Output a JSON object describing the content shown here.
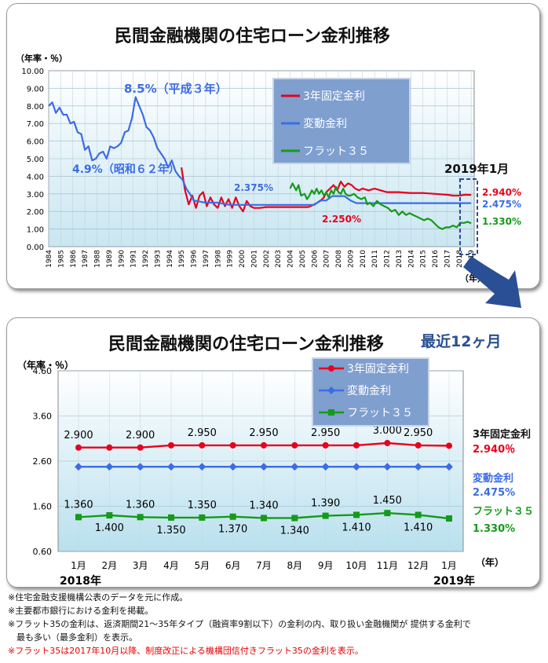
{
  "top": {
    "title": "民間金融機関の住宅ローン金利推移",
    "unit": "（年率・％）",
    "year_unit": "（年）",
    "callout": "2019年1月"
  },
  "bottom": {
    "title": "民間金融機関の住宅ローン金利推移",
    "subtitle": "最近12ヶ月",
    "unit": "（年率・％）",
    "year_unit": "（年）",
    "year_start": "2018年",
    "year_end": "2019年"
  },
  "colors": {
    "fixed": "#e8001c",
    "variable": "#3c6ce6",
    "flat": "#159a19",
    "accent": "#2a4f94"
  },
  "chart_data": [
    {
      "type": "line",
      "yticks": [
        "10.00",
        "9.00",
        "8.00",
        "7.00",
        "6.00",
        "5.00",
        "4.00",
        "3.00",
        "2.00",
        "1.00",
        "0.00"
      ],
      "ylim": [
        0,
        10
      ],
      "xlim": [
        1984,
        2019.25
      ],
      "x_tick_labels": [
        "1984",
        "1985",
        "1986",
        "1987",
        "1988",
        "1989",
        "1990",
        "1991",
        "1992",
        "1993",
        "1994",
        "1995",
        "1996",
        "1997",
        "1998",
        "1999",
        "2000",
        "2001",
        "2002",
        "2003",
        "2004",
        "2005",
        "2006",
        "2007",
        "2008",
        "2009",
        "2010",
        "2011",
        "2012",
        "2013",
        "2014",
        "2015",
        "2016",
        "2017",
        "2018",
        "2019"
      ],
      "legend": [
        "3年固定金利",
        "変動金利",
        "フラット３５"
      ],
      "legend_position": "top-right",
      "grid": true,
      "series": [
        {
          "name": "3年固定金利",
          "color": "#e8001c",
          "x": [
            1995.0,
            1995.3,
            1995.6,
            1995.9,
            1996.2,
            1996.5,
            1996.8,
            1997.1,
            1997.4,
            1997.7,
            1998.0,
            1998.3,
            1998.6,
            1998.9,
            1999.2,
            1999.5,
            1999.8,
            2000.1,
            2000.4,
            2000.7,
            2001.0,
            2001.5,
            2002.0,
            2003.0,
            2004.0,
            2005.0,
            2005.5,
            2006.0,
            2006.5,
            2006.8,
            2007.0,
            2007.3,
            2007.6,
            2007.9,
            2008.2,
            2008.5,
            2008.8,
            2009.1,
            2009.4,
            2009.7,
            2010.0,
            2010.5,
            2011.0,
            2011.5,
            2012.0,
            2013.0,
            2014.0,
            2015.0,
            2016.0,
            2017.0,
            2017.5,
            2018.0,
            2018.5,
            2019.0
          ],
          "values": [
            4.5,
            3.2,
            2.4,
            2.9,
            2.2,
            2.9,
            3.1,
            2.3,
            2.8,
            2.4,
            2.2,
            2.8,
            2.3,
            2.7,
            2.2,
            2.8,
            2.3,
            2.0,
            2.6,
            2.3,
            2.2,
            2.2,
            2.25,
            2.25,
            2.25,
            2.25,
            2.25,
            2.4,
            2.6,
            2.8,
            3.1,
            3.3,
            3.5,
            3.2,
            3.7,
            3.4,
            3.6,
            3.5,
            3.3,
            3.2,
            3.3,
            3.2,
            3.3,
            3.2,
            3.1,
            3.1,
            3.05,
            3.05,
            3.0,
            2.95,
            2.9,
            2.9,
            2.95,
            2.94
          ]
        },
        {
          "name": "変動金利",
          "color": "#3c6ce6",
          "x": [
            1984.0,
            1984.3,
            1984.6,
            1984.9,
            1985.2,
            1985.5,
            1985.8,
            1986.1,
            1986.4,
            1986.7,
            1987.0,
            1987.3,
            1987.6,
            1987.9,
            1988.2,
            1988.5,
            1988.8,
            1989.1,
            1989.4,
            1989.7,
            1990.0,
            1990.3,
            1990.6,
            1990.9,
            1991.2,
            1991.5,
            1991.8,
            1992.1,
            1992.4,
            1992.7,
            1993.0,
            1993.3,
            1993.6,
            1993.9,
            1994.2,
            1994.5,
            1994.8,
            1995.1,
            1995.4,
            1995.7,
            1996.0,
            1997.0,
            1998.0,
            1999.0,
            2000.0,
            2001.0,
            2002.0,
            2003.0,
            2004.0,
            2005.0,
            2006.0,
            2006.5,
            2007.0,
            2007.5,
            2008.0,
            2008.5,
            2009.0,
            2009.5,
            2010.0,
            2011.0,
            2012.0,
            2013.0,
            2014.0,
            2015.0,
            2016.0,
            2017.0,
            2018.0,
            2019.0
          ],
          "values": [
            8.0,
            8.2,
            7.6,
            7.9,
            7.5,
            7.5,
            7.0,
            7.1,
            6.5,
            6.4,
            5.5,
            5.7,
            4.9,
            5.0,
            5.3,
            5.4,
            5.0,
            5.7,
            5.6,
            5.7,
            5.9,
            6.5,
            6.6,
            7.3,
            8.5,
            8.0,
            7.5,
            6.8,
            6.6,
            6.2,
            5.6,
            5.3,
            5.0,
            4.5,
            4.9,
            4.3,
            4.0,
            3.8,
            3.3,
            3.0,
            2.625,
            2.5,
            2.5,
            2.375,
            2.375,
            2.375,
            2.375,
            2.375,
            2.375,
            2.375,
            2.375,
            2.625,
            2.625,
            2.875,
            2.875,
            2.875,
            2.625,
            2.475,
            2.475,
            2.475,
            2.475,
            2.475,
            2.475,
            2.475,
            2.475,
            2.475,
            2.475,
            2.475
          ]
        },
        {
          "name": "フラット３５",
          "color": "#159a19",
          "x": [
            2004.0,
            2004.2,
            2004.5,
            2004.7,
            2004.9,
            2005.2,
            2005.4,
            2005.6,
            2005.8,
            2006.0,
            2006.2,
            2006.4,
            2006.6,
            2006.8,
            2007.0,
            2007.2,
            2007.4,
            2007.6,
            2007.8,
            2008.0,
            2008.2,
            2008.4,
            2008.6,
            2008.8,
            2009.0,
            2009.3,
            2009.6,
            2009.9,
            2010.2,
            2010.4,
            2010.6,
            2010.9,
            2011.2,
            2011.5,
            2011.8,
            2012.1,
            2012.4,
            2012.7,
            2013.0,
            2013.3,
            2013.6,
            2013.9,
            2014.2,
            2014.5,
            2014.8,
            2015.1,
            2015.4,
            2015.7,
            2016.0,
            2016.3,
            2016.6,
            2016.9,
            2017.2,
            2017.5,
            2017.8,
            2018.1,
            2018.4,
            2018.7,
            2019.0
          ],
          "values": [
            3.3,
            3.6,
            3.2,
            3.5,
            2.9,
            3.0,
            2.7,
            2.9,
            3.2,
            3.0,
            3.3,
            3.0,
            3.2,
            2.9,
            3.1,
            2.8,
            3.2,
            3.0,
            3.4,
            3.1,
            3.0,
            3.3,
            3.0,
            2.9,
            2.9,
            3.0,
            2.8,
            2.7,
            2.8,
            2.4,
            2.5,
            2.3,
            2.6,
            2.4,
            2.3,
            2.2,
            2.0,
            2.1,
            1.8,
            2.0,
            1.8,
            1.9,
            1.8,
            1.7,
            1.6,
            1.5,
            1.6,
            1.5,
            1.3,
            1.1,
            1.0,
            1.1,
            1.1,
            1.2,
            1.1,
            1.36,
            1.35,
            1.41,
            1.33
          ]
        }
      ],
      "annotations": [
        {
          "text": "8.5%（平成３年）",
          "color": "#3c6ce6"
        },
        {
          "text": "4.9%（昭和６２年）",
          "color": "#3c6ce6"
        },
        {
          "text": "2.375%",
          "color": "#3c6ce6"
        },
        {
          "text": "2.250%",
          "color": "#e8001c"
        },
        {
          "text": "2.940%",
          "color": "#e8001c"
        },
        {
          "text": "2.475%",
          "color": "#3c6ce6"
        },
        {
          "text": "1.330%",
          "color": "#159a19"
        }
      ]
    },
    {
      "type": "line",
      "categories": [
        "1月",
        "2月",
        "3月",
        "4月",
        "5月",
        "6月",
        "7月",
        "8月",
        "9月",
        "10月",
        "11月",
        "12月",
        "1月"
      ],
      "yticks": [
        "4.60",
        "3.60",
        "2.60",
        "1.60",
        "0.60"
      ],
      "ylim": [
        0.6,
        4.6
      ],
      "legend": [
        "3年固定金利",
        "変動金利",
        "フラット３５"
      ],
      "legend_position": "top-right",
      "grid": true,
      "series": [
        {
          "name": "3年固定金利",
          "color": "#e8001c",
          "values": [
            2.9,
            2.9,
            2.9,
            2.95,
            2.95,
            2.95,
            2.95,
            2.95,
            2.95,
            2.95,
            3.0,
            2.95,
            2.94
          ]
        },
        {
          "name": "変動金利",
          "color": "#3c6ce6",
          "values": [
            2.475,
            2.475,
            2.475,
            2.475,
            2.475,
            2.475,
            2.475,
            2.475,
            2.475,
            2.475,
            2.475,
            2.475,
            2.475
          ]
        },
        {
          "name": "フラット３５",
          "color": "#159a19",
          "values": [
            1.36,
            1.4,
            1.36,
            1.35,
            1.35,
            1.37,
            1.34,
            1.34,
            1.39,
            1.41,
            1.45,
            1.41,
            1.33
          ]
        }
      ],
      "fixed_labels": [
        "2.900",
        "2.900",
        "2.950",
        "2.950",
        "2.950",
        "3.000",
        "2.950"
      ],
      "flat_labels": [
        "1.360",
        "1.400",
        "1.360",
        "1.350",
        "1.350",
        "1.370",
        "1.340",
        "1.340",
        "1.390",
        "1.410",
        "1.450",
        "1.410"
      ],
      "series_end_labels": [
        {
          "name": "3年固定金利",
          "value": "2.940％"
        },
        {
          "name": "変動金利",
          "value": "2.475%"
        },
        {
          "name": "フラット３５",
          "value": "1.330%"
        }
      ]
    }
  ],
  "notes": [
    "※住宅金融支援機構公表のデータを元に作成。",
    "※主要都市銀行における金利を掲載。",
    "※フラット35の金利は、返済期間21～35年タイプ（融資率9割以下）の金利の内、取り扱い金融機関が 提供する金利で",
    "　最も多い（最多金利）を表示。",
    "※フラット35は2017年10月以降、制度改正による機構団信付きフラット35の金利を表示。"
  ]
}
